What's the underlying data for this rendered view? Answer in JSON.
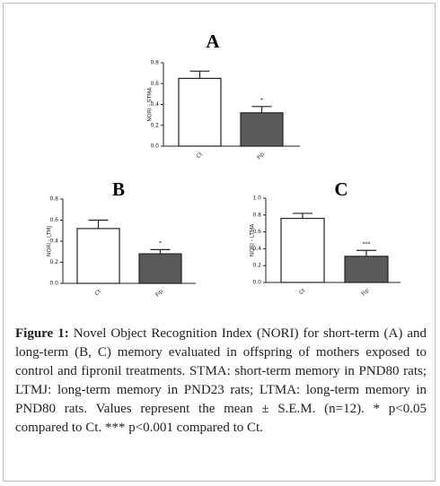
{
  "chart_data": [
    {
      "type": "bar",
      "title": "A",
      "ylabel": "NORI - STMA",
      "categories": [
        "Ct",
        "Fip"
      ],
      "values": [
        0.65,
        0.32
      ],
      "errors": [
        0.07,
        0.06
      ],
      "annotations": [
        null,
        "*"
      ],
      "colors": [
        "#ffffff",
        "#5a5a5a"
      ],
      "ylim": [
        0,
        0.8
      ],
      "yticks": [
        {
          "value": 0,
          "label": "0.0"
        },
        0.2,
        0.4,
        0.6,
        0.8
      ]
    },
    {
      "type": "bar",
      "title": "B",
      "ylabel": "NORI - LTMJ",
      "categories": [
        "Ct",
        "Fip"
      ],
      "values": [
        0.52,
        0.28
      ],
      "errors": [
        0.08,
        0.04
      ],
      "annotations": [
        null,
        "*"
      ],
      "colors": [
        "#ffffff",
        "#5a5a5a"
      ],
      "ylim": [
        0,
        0.8
      ],
      "yticks": [
        {
          "value": 0,
          "label": "0.0"
        },
        0.2,
        0.4,
        0.6,
        0.8
      ]
    },
    {
      "type": "bar",
      "title": "C",
      "ylabel": "NORI - LTMA",
      "categories": [
        "Ct",
        "Fip"
      ],
      "values": [
        0.76,
        0.31
      ],
      "errors": [
        0.06,
        0.07
      ],
      "annotations": [
        null,
        "***"
      ],
      "colors": [
        "#ffffff",
        "#5a5a5a"
      ],
      "ylim": [
        0,
        1
      ],
      "yticks": [
        {
          "value": 0,
          "label": "0.0"
        },
        0.2,
        0.4,
        0.6,
        0.8,
        {
          "value": 1,
          "label": "1.0"
        }
      ]
    }
  ],
  "figure": {
    "label": "Figure 1:",
    "text": "Novel Object Recognition Index (NORI) for short-term (A) and long-term (B, C) memory evaluated in offspring of mothers exposed to control and fipronil treatments. STMA: short-term memory in PND80 rats; LTMJ: long-term memory in PND23 rats; LTMA: long-term memory in PND80 rats. Values represent the mean ± S.E.M. (n=12). * p<0.05 compared to Ct. *** p<0.001 compared to Ct."
  }
}
